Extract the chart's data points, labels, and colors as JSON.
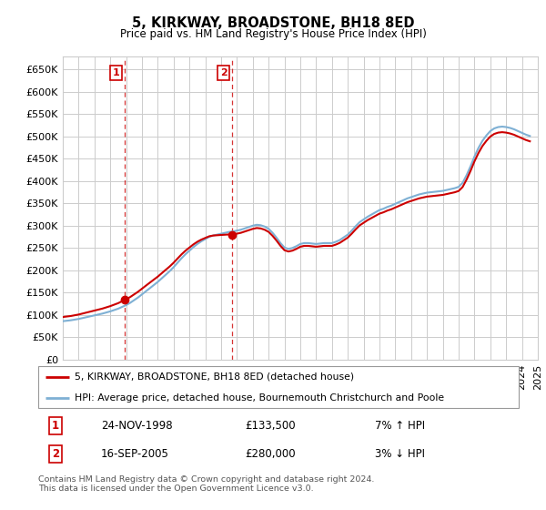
{
  "title": "5, KIRKWAY, BROADSTONE, BH18 8ED",
  "subtitle": "Price paid vs. HM Land Registry's House Price Index (HPI)",
  "legend_line1": "5, KIRKWAY, BROADSTONE, BH18 8ED (detached house)",
  "legend_line2": "HPI: Average price, detached house, Bournemouth Christchurch and Poole",
  "table_row1_num": "1",
  "table_row1_date": "24-NOV-1998",
  "table_row1_price": "£133,500",
  "table_row1_hpi": "7% ↑ HPI",
  "table_row2_num": "2",
  "table_row2_date": "16-SEP-2005",
  "table_row2_price": "£280,000",
  "table_row2_hpi": "3% ↓ HPI",
  "copyright": "Contains HM Land Registry data © Crown copyright and database right 2024.\nThis data is licensed under the Open Government Licence v3.0.",
  "sale_marker_color": "#cc0000",
  "hpi_line_color": "#7eb0d4",
  "price_line_color": "#cc0000",
  "background_color": "#ffffff",
  "plot_bg_color": "#ffffff",
  "grid_color": "#cccccc",
  "annotation_color": "#cc0000",
  "ylim": [
    0,
    680000
  ],
  "yticks": [
    0,
    50000,
    100000,
    150000,
    200000,
    250000,
    300000,
    350000,
    400000,
    450000,
    500000,
    550000,
    600000,
    650000
  ],
  "sale1_x": 1998.9,
  "sale1_y": 133500,
  "sale2_x": 2005.71,
  "sale2_y": 280000,
  "vline1_x": 1998.9,
  "vline2_x": 2005.71,
  "xtick_years": [
    1995,
    1996,
    1997,
    1998,
    1999,
    2000,
    2001,
    2002,
    2003,
    2004,
    2005,
    2006,
    2007,
    2008,
    2009,
    2010,
    2011,
    2012,
    2013,
    2014,
    2015,
    2016,
    2017,
    2018,
    2019,
    2020,
    2021,
    2022,
    2023,
    2024,
    2025
  ],
  "hpi_x": [
    1995.0,
    1995.25,
    1995.5,
    1995.75,
    1996.0,
    1996.25,
    1996.5,
    1996.75,
    1997.0,
    1997.25,
    1997.5,
    1997.75,
    1998.0,
    1998.25,
    1998.5,
    1998.75,
    1999.0,
    1999.25,
    1999.5,
    1999.75,
    2000.0,
    2000.25,
    2000.5,
    2000.75,
    2001.0,
    2001.25,
    2001.5,
    2001.75,
    2002.0,
    2002.25,
    2002.5,
    2002.75,
    2003.0,
    2003.25,
    2003.5,
    2003.75,
    2004.0,
    2004.25,
    2004.5,
    2004.75,
    2005.0,
    2005.25,
    2005.5,
    2005.75,
    2006.0,
    2006.25,
    2006.5,
    2006.75,
    2007.0,
    2007.25,
    2007.5,
    2007.75,
    2008.0,
    2008.25,
    2008.5,
    2008.75,
    2009.0,
    2009.25,
    2009.5,
    2009.75,
    2010.0,
    2010.25,
    2010.5,
    2010.75,
    2011.0,
    2011.25,
    2011.5,
    2011.75,
    2012.0,
    2012.25,
    2012.5,
    2012.75,
    2013.0,
    2013.25,
    2013.5,
    2013.75,
    2014.0,
    2014.25,
    2014.5,
    2014.75,
    2015.0,
    2015.25,
    2015.5,
    2015.75,
    2016.0,
    2016.25,
    2016.5,
    2016.75,
    2017.0,
    2017.25,
    2017.5,
    2017.75,
    2018.0,
    2018.25,
    2018.5,
    2018.75,
    2019.0,
    2019.25,
    2019.5,
    2019.75,
    2020.0,
    2020.25,
    2020.5,
    2020.75,
    2021.0,
    2021.25,
    2021.5,
    2021.75,
    2022.0,
    2022.25,
    2022.5,
    2022.75,
    2023.0,
    2023.25,
    2023.5,
    2023.75,
    2024.0,
    2024.25,
    2024.5
  ],
  "hpi_y": [
    86000,
    87000,
    88000,
    89500,
    91000,
    93000,
    95000,
    97000,
    99000,
    101000,
    103000,
    105500,
    108000,
    111000,
    114000,
    118000,
    122000,
    127000,
    133000,
    139000,
    146000,
    153000,
    160000,
    167000,
    174000,
    182000,
    190000,
    198000,
    207000,
    217000,
    227000,
    236000,
    244000,
    252000,
    259000,
    265000,
    270000,
    275000,
    278000,
    280000,
    282000,
    284000,
    286000,
    287000,
    289000,
    291000,
    294000,
    297000,
    300000,
    302000,
    301000,
    298000,
    293000,
    284000,
    273000,
    261000,
    251000,
    248000,
    250000,
    254000,
    259000,
    261000,
    261000,
    260000,
    259000,
    260000,
    261000,
    261000,
    261000,
    264000,
    268000,
    274000,
    280000,
    289000,
    299000,
    308000,
    314000,
    320000,
    325000,
    330000,
    335000,
    338000,
    342000,
    345000,
    349000,
    353000,
    357000,
    361000,
    364000,
    367000,
    370000,
    372000,
    374000,
    375000,
    376000,
    377000,
    378000,
    380000,
    382000,
    384000,
    387000,
    396000,
    413000,
    433000,
    455000,
    474000,
    490000,
    502000,
    512000,
    518000,
    521000,
    522000,
    521000,
    519000,
    516000,
    512000,
    508000,
    504000,
    501000
  ]
}
